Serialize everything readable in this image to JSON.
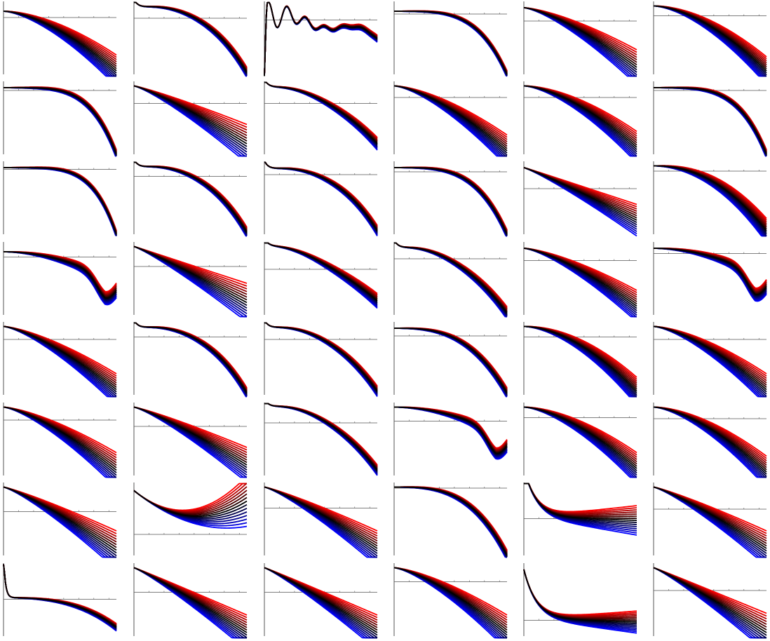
{
  "colors": {
    "low": "#0000ff",
    "mid": "#000000",
    "high": "#ff0000",
    "axis": "#555555"
  },
  "chart_data": {
    "type": "line",
    "grid": false,
    "rows": 8,
    "cols": 6,
    "curves_per_panel": 15,
    "x_range": [
      0,
      1
    ],
    "y_range": [
      -1,
      1
    ],
    "panels": [
      {
        "shape": "a",
        "axis_y": 0.62,
        "start": 0.8,
        "end": -0.9,
        "spread": 0.45,
        "power": 1.6
      },
      {
        "shape": "b",
        "axis_y": 0.6,
        "start": 0.9,
        "end": -0.95,
        "spread": 0.25,
        "power": 3.0
      },
      {
        "shape": "osc",
        "axis_y": 0.55,
        "start": 0.2,
        "end": -0.5,
        "spread": 0.2,
        "power": 2.0
      },
      {
        "shape": "d",
        "axis_y": 0.72,
        "start": 0.8,
        "end": -1.0,
        "spread": 0.2,
        "power": 4.0
      },
      {
        "shape": "a",
        "axis_y": 0.52,
        "start": 0.9,
        "end": -0.8,
        "spread": 0.5,
        "power": 1.4
      },
      {
        "shape": "a",
        "axis_y": 0.67,
        "start": 0.95,
        "end": -0.9,
        "spread": 0.4,
        "power": 1.7
      },
      {
        "shape": "d",
        "axis_y": 0.82,
        "start": 0.9,
        "end": -1.0,
        "spread": 0.25,
        "power": 4.5
      },
      {
        "shape": "a",
        "axis_y": 0.45,
        "start": 0.95,
        "end": -0.7,
        "spread": 0.55,
        "power": 1.2
      },
      {
        "shape": "b",
        "axis_y": 0.45,
        "start": 0.9,
        "end": -0.7,
        "spread": 0.3,
        "power": 2.2
      },
      {
        "shape": "a",
        "axis_y": 0.62,
        "start": 0.95,
        "end": -0.9,
        "spread": 0.45,
        "power": 1.5
      },
      {
        "shape": "a",
        "axis_y": 0.62,
        "start": 0.95,
        "end": -0.8,
        "spread": 0.45,
        "power": 1.6
      },
      {
        "shape": "d",
        "axis_y": 0.82,
        "start": 0.9,
        "end": -1.0,
        "spread": 0.25,
        "power": 4.2
      },
      {
        "shape": "d",
        "axis_y": 0.85,
        "start": 0.9,
        "end": -1.0,
        "spread": 0.2,
        "power": 5.0
      },
      {
        "shape": "b",
        "axis_y": 0.65,
        "start": 0.9,
        "end": -0.95,
        "spread": 0.25,
        "power": 3.0
      },
      {
        "shape": "b",
        "axis_y": 0.7,
        "start": 0.85,
        "end": -0.9,
        "spread": 0.25,
        "power": 3.0
      },
      {
        "shape": "d",
        "axis_y": 0.78,
        "start": 0.9,
        "end": -1.0,
        "spread": 0.25,
        "power": 3.8
      },
      {
        "shape": "a",
        "axis_y": 0.3,
        "start": 0.9,
        "end": -0.6,
        "spread": 0.45,
        "power": 1.1
      },
      {
        "shape": "a",
        "axis_y": 0.8,
        "start": 0.95,
        "end": -0.9,
        "spread": 0.35,
        "power": 2.2
      },
      {
        "shape": "dip",
        "axis_y": 0.65,
        "start": 0.8,
        "end": -0.6,
        "spread": 0.35,
        "power": 2.0
      },
      {
        "shape": "a",
        "axis_y": 0.38,
        "start": 0.95,
        "end": -0.65,
        "spread": 0.55,
        "power": 1.1
      },
      {
        "shape": "b",
        "axis_y": 0.3,
        "start": 0.95,
        "end": -0.6,
        "spread": 0.35,
        "power": 1.8
      },
      {
        "shape": "b",
        "axis_y": 0.6,
        "start": 0.9,
        "end": -0.95,
        "spread": 0.3,
        "power": 2.4
      },
      {
        "shape": "a",
        "axis_y": 0.55,
        "start": 0.9,
        "end": -0.75,
        "spread": 0.45,
        "power": 1.4
      },
      {
        "shape": "dip",
        "axis_y": 0.75,
        "start": 0.9,
        "end": -0.6,
        "spread": 0.35,
        "power": 2.0
      },
      {
        "shape": "a",
        "axis_y": 0.58,
        "start": 0.95,
        "end": -0.85,
        "spread": 0.45,
        "power": 1.4
      },
      {
        "shape": "b",
        "axis_y": 0.65,
        "start": 0.9,
        "end": -0.95,
        "spread": 0.25,
        "power": 3.0
      },
      {
        "shape": "b",
        "axis_y": 0.58,
        "start": 0.9,
        "end": -0.9,
        "spread": 0.25,
        "power": 2.6
      },
      {
        "shape": "d",
        "axis_y": 0.68,
        "start": 0.9,
        "end": -0.95,
        "spread": 0.3,
        "power": 3.0
      },
      {
        "shape": "a",
        "axis_y": 0.65,
        "start": 0.95,
        "end": -0.9,
        "spread": 0.4,
        "power": 1.8
      },
      {
        "shape": "a",
        "axis_y": 0.58,
        "start": 0.95,
        "end": -0.85,
        "spread": 0.45,
        "power": 1.5
      },
      {
        "shape": "a",
        "axis_y": 0.58,
        "start": 0.95,
        "end": -0.85,
        "spread": 0.5,
        "power": 1.4
      },
      {
        "shape": "a",
        "axis_y": 0.4,
        "start": 0.95,
        "end": -0.7,
        "spread": 0.5,
        "power": 1.2
      },
      {
        "shape": "b",
        "axis_y": 0.5,
        "start": 0.95,
        "end": -0.85,
        "spread": 0.25,
        "power": 2.4
      },
      {
        "shape": "dip",
        "axis_y": 0.55,
        "start": 0.95,
        "end": -0.85,
        "spread": 0.3,
        "power": 2.5
      },
      {
        "shape": "a",
        "axis_y": 0.65,
        "start": 0.95,
        "end": -0.8,
        "spread": 0.45,
        "power": 1.6
      },
      {
        "shape": "a",
        "axis_y": 0.62,
        "start": 0.95,
        "end": -0.9,
        "spread": 0.45,
        "power": 1.6
      },
      {
        "shape": "a",
        "axis_y": 0.25,
        "start": 0.95,
        "end": -0.85,
        "spread": 0.55,
        "power": 1.2
      },
      {
        "shape": "u",
        "axis_y": -0.4,
        "start": 0.95,
        "end": -0.3,
        "spread": 0.6,
        "power": 2.0
      },
      {
        "shape": "a",
        "axis_y": 0.35,
        "start": 0.95,
        "end": -0.8,
        "spread": 0.5,
        "power": 1.2
      },
      {
        "shape": "d",
        "axis_y": 0.92,
        "start": 0.95,
        "end": -1.0,
        "spread": 0.3,
        "power": 3.2
      },
      {
        "shape": "flat",
        "axis_y": 0.05,
        "start": 0.95,
        "end": -0.7,
        "spread": 0.6,
        "power": 1.5
      },
      {
        "shape": "a",
        "axis_y": 0.32,
        "start": 0.95,
        "end": -0.8,
        "spread": 0.5,
        "power": 1.2
      },
      {
        "shape": "spike",
        "axis_y": 0.05,
        "start": 0.98,
        "end": -0.9,
        "spread": 0.3,
        "power": 2.5
      },
      {
        "shape": "a",
        "axis_y": 0.25,
        "start": 0.95,
        "end": -0.9,
        "spread": 0.5,
        "power": 1.1
      },
      {
        "shape": "a",
        "axis_y": 0.25,
        "start": 0.95,
        "end": -0.9,
        "spread": 0.5,
        "power": 1.1
      },
      {
        "shape": "a",
        "axis_y": 0.55,
        "start": 0.95,
        "end": -0.9,
        "spread": 0.5,
        "power": 1.4
      },
      {
        "shape": "flat",
        "axis_y": -0.55,
        "start": 0.98,
        "end": -0.6,
        "spread": 0.45,
        "power": 1.5
      },
      {
        "shape": "a",
        "axis_y": 0.3,
        "start": 0.95,
        "end": -0.9,
        "spread": 0.55,
        "power": 1.1
      }
    ]
  }
}
